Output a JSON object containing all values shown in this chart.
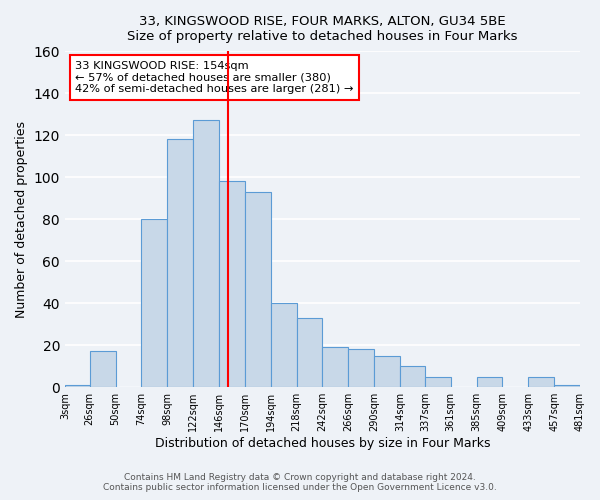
{
  "title": "33, KINGSWOOD RISE, FOUR MARKS, ALTON, GU34 5BE",
  "subtitle": "Size of property relative to detached houses in Four Marks",
  "xlabel": "Distribution of detached houses by size in Four Marks",
  "ylabel": "Number of detached properties",
  "bar_edges": [
    3,
    26,
    50,
    74,
    98,
    122,
    146,
    170,
    194,
    218,
    242,
    266,
    290,
    314,
    337,
    361,
    385,
    409,
    433,
    457,
    481
  ],
  "bar_heights": [
    1,
    17,
    0,
    80,
    118,
    127,
    98,
    93,
    40,
    33,
    19,
    18,
    15,
    10,
    5,
    0,
    5,
    0,
    5,
    1
  ],
  "bar_color": "#c8d8e8",
  "bar_edge_color": "#5b9bd5",
  "reference_line_x": 154,
  "reference_line_color": "red",
  "annotation_text": "33 KINGSWOOD RISE: 154sqm\n← 57% of detached houses are smaller (380)\n42% of semi-detached houses are larger (281) →",
  "annotation_box_color": "white",
  "annotation_box_edge_color": "red",
  "ylim": [
    0,
    160
  ],
  "yticks": [
    0,
    20,
    40,
    60,
    80,
    100,
    120,
    140,
    160
  ],
  "tick_labels": [
    "3sqm",
    "26sqm",
    "50sqm",
    "74sqm",
    "98sqm",
    "122sqm",
    "146sqm",
    "170sqm",
    "194sqm",
    "218sqm",
    "242sqm",
    "266sqm",
    "290sqm",
    "314sqm",
    "337sqm",
    "361sqm",
    "385sqm",
    "409sqm",
    "433sqm",
    "457sqm",
    "481sqm"
  ],
  "footer1": "Contains HM Land Registry data © Crown copyright and database right 2024.",
  "footer2": "Contains public sector information licensed under the Open Government Licence v3.0.",
  "bg_color": "#eef2f7",
  "grid_color": "white"
}
